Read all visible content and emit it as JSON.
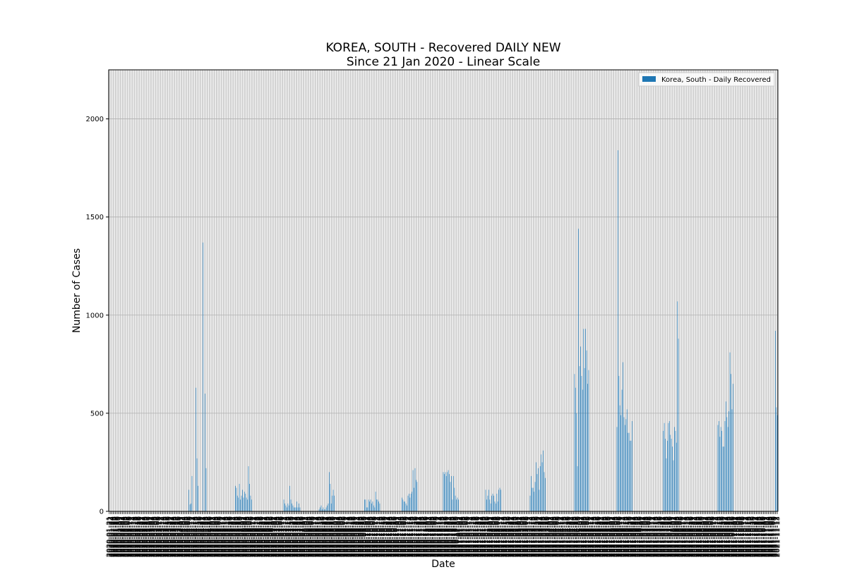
{
  "chart_data": {
    "type": "bar",
    "title": "KOREA, SOUTH - Recovered DAILY NEW",
    "subtitle": "Since 21 Jan 2020 - Linear Scale",
    "xlabel": "Date",
    "ylabel": "Number of Cases",
    "ylim": [
      0,
      2250
    ],
    "yticks": [
      0,
      500,
      1000,
      1500,
      2000
    ],
    "grid": true,
    "legend_position": "top-right",
    "start_date": "2020-01-21",
    "series": [
      {
        "name": "Korea, South - Daily Recovered",
        "color": "#1f77b4",
        "values": [
          0,
          0,
          0,
          0,
          0,
          0,
          0,
          0,
          0,
          0,
          0,
          0,
          0,
          0,
          0,
          2,
          1,
          0,
          1,
          0,
          1,
          3,
          0,
          0,
          0,
          0,
          2,
          1,
          0,
          0,
          0,
          0,
          1,
          0,
          0,
          0,
          0,
          0,
          0,
          0,
          0,
          0,
          0,
          0,
          0,
          0,
          0,
          0,
          0,
          0,
          0,
          0,
          0,
          0,
          0,
          0,
          0,
          0,
          0,
          0,
          0,
          0,
          0,
          0,
          0,
          0,
          0,
          0,
          0,
          0,
          0,
          0,
          0,
          0,
          0,
          0,
          0,
          0,
          0,
          110,
          35,
          40,
          180,
          0,
          0,
          0,
          630,
          270,
          130,
          0,
          0,
          0,
          0,
          1370,
          0,
          600,
          220,
          0,
          0,
          0,
          0,
          0,
          0,
          0,
          0,
          0,
          0,
          0,
          0,
          0,
          0,
          0,
          0,
          0,
          0,
          0,
          0,
          0,
          0,
          0,
          0,
          0,
          0,
          0,
          0,
          130,
          120,
          80,
          70,
          140,
          60,
          80,
          110,
          70,
          100,
          90,
          70,
          60,
          230,
          140,
          80,
          60,
          0,
          0,
          0,
          0,
          0,
          0,
          0,
          0,
          0,
          0,
          0,
          0,
          0,
          0,
          0,
          0,
          0,
          0,
          0,
          0,
          0,
          0,
          0,
          0,
          0,
          0,
          0,
          0,
          0,
          0,
          0,
          60,
          40,
          30,
          20,
          40,
          30,
          130,
          60,
          40,
          30,
          20,
          20,
          20,
          50,
          20,
          40,
          20,
          0,
          0,
          0,
          0,
          0,
          0,
          0,
          0,
          0,
          0,
          0,
          0,
          0,
          0,
          0,
          0,
          0,
          0,
          10,
          20,
          30,
          10,
          20,
          10,
          10,
          20,
          30,
          40,
          200,
          140,
          40,
          80,
          110,
          80,
          0,
          0,
          0,
          0,
          0,
          0,
          0,
          0,
          0,
          0,
          0,
          0,
          0,
          0,
          0,
          0,
          0,
          0,
          0,
          0,
          0,
          0,
          0,
          0,
          0,
          0,
          0,
          0,
          0,
          60,
          60,
          20,
          20,
          60,
          50,
          60,
          40,
          50,
          30,
          20,
          100,
          60,
          60,
          50,
          40,
          0,
          0,
          0,
          0,
          0,
          0,
          0,
          0,
          0,
          0,
          0,
          0,
          0,
          0,
          0,
          0,
          0,
          0,
          0,
          0,
          0,
          70,
          60,
          50,
          50,
          40,
          30,
          80,
          90,
          70,
          90,
          100,
          210,
          120,
          220,
          160,
          150,
          0,
          0,
          0,
          0,
          0,
          0,
          0,
          0,
          0,
          0,
          0,
          0,
          0,
          0,
          0,
          0,
          0,
          0,
          0,
          0,
          0,
          0,
          0,
          0,
          0,
          200,
          190,
          200,
          180,
          200,
          210,
          190,
          150,
          180,
          60,
          180,
          120,
          80,
          60,
          70,
          60,
          0,
          0,
          0,
          0,
          0,
          0,
          0,
          0,
          0,
          0,
          0,
          0,
          0,
          0,
          0,
          0,
          0,
          0,
          0,
          0,
          0,
          0,
          0,
          0,
          0,
          0,
          110,
          60,
          80,
          110,
          60,
          40,
          80,
          90,
          80,
          50,
          40,
          90,
          50,
          110,
          120,
          110,
          0,
          0,
          0,
          0,
          0,
          0,
          0,
          0,
          0,
          0,
          0,
          0,
          0,
          0,
          0,
          0,
          0,
          0,
          0,
          0,
          0,
          0,
          0,
          0,
          0,
          0,
          0,
          0,
          80,
          180,
          120,
          120,
          100,
          150,
          250,
          190,
          220,
          110,
          230,
          290,
          250,
          310,
          200,
          170,
          0,
          0,
          0,
          0,
          0,
          0,
          0,
          0,
          0,
          0,
          0,
          0,
          0,
          0,
          0,
          0,
          0,
          0,
          0,
          0,
          0,
          0,
          0,
          0,
          0,
          0,
          0,
          0,
          700,
          630,
          500,
          230,
          1440,
          740,
          840,
          690,
          620,
          930,
          730,
          930,
          820,
          650,
          720,
          0,
          0,
          0,
          0,
          0,
          0,
          0,
          0,
          0,
          0,
          0,
          0,
          0,
          0,
          0,
          0,
          0,
          0,
          0,
          0,
          0,
          0,
          0,
          0,
          0,
          0,
          0,
          430,
          1840,
          690,
          540,
          490,
          620,
          760,
          480,
          440,
          470,
          520,
          400,
          400,
          360,
          360,
          460,
          0,
          0,
          0,
          0,
          0,
          0,
          0,
          0,
          0,
          0,
          0,
          0,
          0,
          0,
          0,
          0,
          0,
          0,
          0,
          0,
          0,
          0,
          0,
          0,
          0,
          0,
          0,
          0,
          0,
          0,
          410,
          450,
          370,
          270,
          360,
          450,
          460,
          390,
          370,
          330,
          260,
          430,
          410,
          350,
          1070,
          880,
          0,
          0,
          0,
          0,
          0,
          0,
          0,
          0,
          0,
          0,
          0,
          0,
          0,
          0,
          0,
          0,
          0,
          0,
          0,
          0,
          0,
          0,
          0,
          0,
          0,
          0,
          0,
          0,
          0,
          0,
          0,
          0,
          0,
          0,
          0,
          0,
          0,
          0,
          440,
          460,
          380,
          430,
          410,
          330,
          330,
          460,
          560,
          480,
          430,
          510,
          810,
          700,
          520,
          650,
          0,
          0,
          0,
          0,
          0,
          0,
          0,
          0,
          0,
          0,
          0,
          0,
          0,
          0,
          0,
          0,
          0,
          0,
          0,
          0,
          0,
          0,
          0,
          0,
          0,
          0,
          0,
          0,
          0,
          0,
          0,
          0,
          0,
          0,
          0,
          0,
          0,
          0,
          0,
          0,
          0,
          920,
          530,
          490
        ]
      }
    ]
  }
}
